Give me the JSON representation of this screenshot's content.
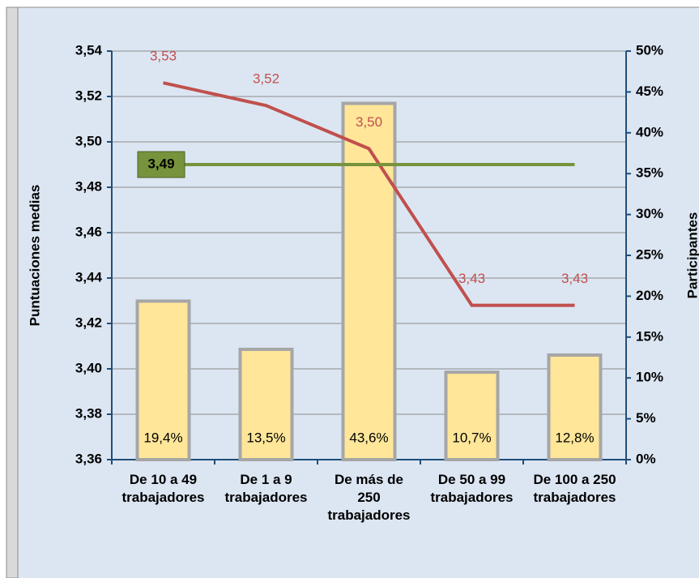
{
  "chart_data": {
    "type": "bar",
    "ylabel": "Puntuaciones medias",
    "y2label": "Participantes",
    "categories": [
      [
        "De 10 a 49",
        "trabajadores"
      ],
      [
        "De 1 a 9",
        "trabajadores"
      ],
      [
        "De más de",
        "250",
        "trabajadores"
      ],
      [
        "De 50 a 99",
        "trabajadores"
      ],
      [
        "De 100 a 250",
        "trabajadores"
      ]
    ],
    "series": [
      {
        "type": "bar",
        "axis": "y2",
        "color": "#ffe699",
        "values": [
          19.4,
          13.5,
          43.6,
          10.7,
          12.8
        ],
        "value_labels": [
          "19,4%",
          "13,5%",
          "43,6%",
          "10,7%",
          "12,8%"
        ]
      },
      {
        "type": "line",
        "axis": "y",
        "color": "#c0504d",
        "values": [
          3.526,
          3.516,
          3.497,
          3.428,
          3.428
        ],
        "value_labels": [
          "3,53",
          "3,52",
          "3,50",
          "3,43",
          "3,43"
        ]
      }
    ],
    "reference_line": {
      "value": 3.49,
      "label": "3,49",
      "color": "#77933c"
    },
    "ylim": [
      3.36,
      3.54
    ],
    "yticks": [
      {
        "value": 3.36,
        "label": "3,36"
      },
      {
        "value": 3.38,
        "label": "3,38"
      },
      {
        "value": 3.4,
        "label": "3,40"
      },
      {
        "value": 3.42,
        "label": "3,42"
      },
      {
        "value": 3.44,
        "label": "3,44"
      },
      {
        "value": 3.46,
        "label": "3,46"
      },
      {
        "value": 3.48,
        "label": "3,48"
      },
      {
        "value": 3.5,
        "label": "3,50"
      },
      {
        "value": 3.52,
        "label": "3,52"
      },
      {
        "value": 3.54,
        "label": "3,54"
      }
    ],
    "y2lim": [
      0,
      50
    ],
    "y2ticks": [
      {
        "value": 0,
        "label": "0%"
      },
      {
        "value": 5,
        "label": "5%"
      },
      {
        "value": 10,
        "label": "10%"
      },
      {
        "value": 15,
        "label": "15%"
      },
      {
        "value": 20,
        "label": "20%"
      },
      {
        "value": 25,
        "label": "25%"
      },
      {
        "value": 30,
        "label": "30%"
      },
      {
        "value": 35,
        "label": "35%"
      },
      {
        "value": 40,
        "label": "40%"
      },
      {
        "value": 45,
        "label": "45%"
      },
      {
        "value": 50,
        "label": "50%"
      }
    ],
    "grid": true
  }
}
